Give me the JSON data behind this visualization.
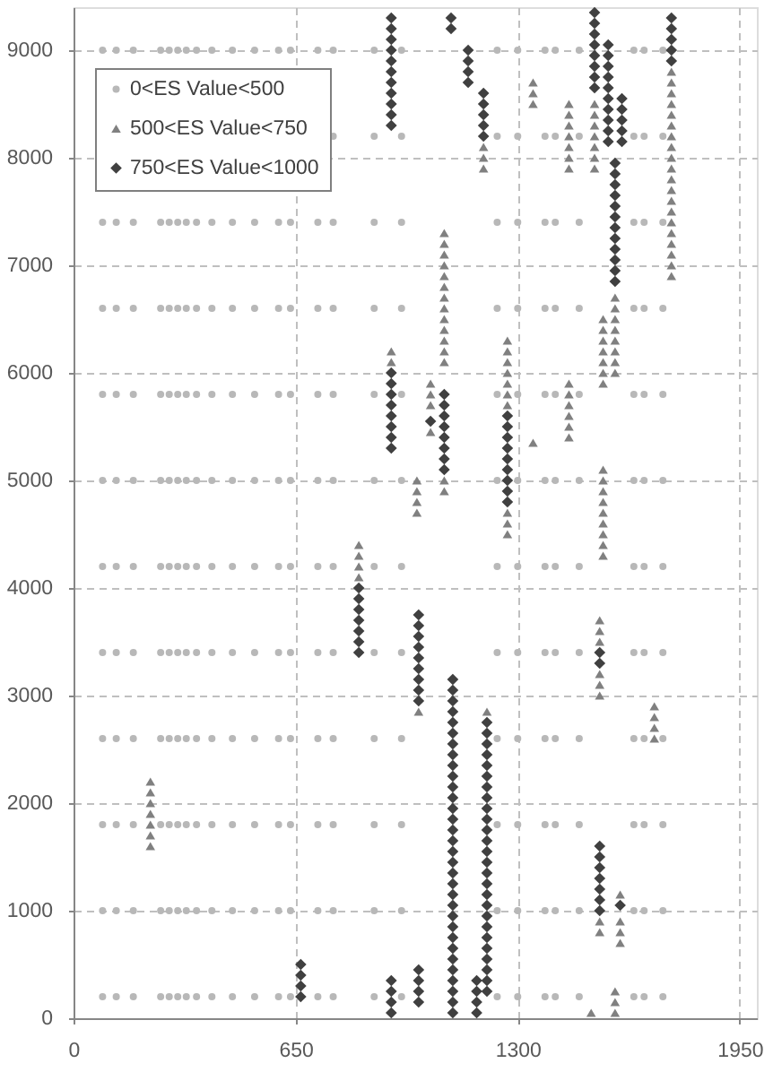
{
  "chart_data": {
    "type": "scatter",
    "xlim": [
      0,
      2000
    ],
    "xticks": [
      0,
      650,
      1300,
      1950
    ],
    "ylim": [
      0,
      9400
    ],
    "yticks": [
      0,
      1000,
      2000,
      3000,
      4000,
      5000,
      6000,
      7000,
      8000,
      9000
    ],
    "grid": true,
    "legend": "top left",
    "series": [
      {
        "name": "0<ES Value<500",
        "color": "#b8b8b8",
        "marker": "circle",
        "x": [
          85,
          85,
          85,
          85,
          85,
          85,
          85,
          85,
          85,
          85,
          85,
          125,
          125,
          125,
          125,
          125,
          125,
          125,
          125,
          125,
          125,
          125,
          175,
          175,
          175,
          175,
          175,
          175,
          175,
          175,
          175,
          175,
          175,
          255,
          255,
          255,
          255,
          255,
          255,
          255,
          255,
          255,
          255,
          255,
          280,
          280,
          280,
          280,
          280,
          280,
          280,
          280,
          280,
          280,
          280,
          305,
          305,
          305,
          305,
          305,
          305,
          305,
          305,
          305,
          305,
          305,
          330,
          330,
          330,
          330,
          330,
          330,
          330,
          330,
          330,
          330,
          330,
          360,
          360,
          360,
          360,
          360,
          360,
          360,
          360,
          360,
          360,
          360,
          405,
          405,
          405,
          405,
          405,
          405,
          405,
          405,
          405,
          405,
          405,
          465,
          465,
          465,
          465,
          465,
          465,
          465,
          465,
          465,
          465,
          465,
          530,
          530,
          530,
          530,
          530,
          530,
          530,
          530,
          530,
          530,
          530,
          600,
          600,
          600,
          600,
          600,
          600,
          600,
          600,
          600,
          600,
          600,
          635,
          635,
          635,
          635,
          635,
          635,
          635,
          635,
          635,
          635,
          635,
          715,
          715,
          715,
          715,
          715,
          715,
          715,
          715,
          715,
          715,
          715,
          760,
          760,
          760,
          760,
          760,
          760,
          760,
          760,
          760,
          760,
          760,
          760,
          880,
          880,
          880,
          880,
          880,
          880,
          880,
          880,
          880,
          880,
          880,
          880,
          960,
          960,
          960,
          960,
          960,
          960,
          960,
          960,
          960,
          960,
          960,
          960,
          1240,
          1240,
          1240,
          1240,
          1240,
          1240,
          1240,
          1240,
          1240,
          1240,
          1240,
          1240,
          1300,
          1300,
          1300,
          1300,
          1300,
          1300,
          1300,
          1300,
          1300,
          1300,
          1300,
          1300,
          1380,
          1380,
          1380,
          1380,
          1380,
          1380,
          1380,
          1380,
          1380,
          1380,
          1380,
          1380,
          1410,
          1410,
          1410,
          1410,
          1410,
          1410,
          1410,
          1410,
          1410,
          1410,
          1410,
          1410,
          1480,
          1480,
          1480,
          1480,
          1480,
          1480,
          1480,
          1480,
          1480,
          1480,
          1480,
          1480,
          1640,
          1640,
          1640,
          1640,
          1640,
          1640,
          1640,
          1640,
          1640,
          1640,
          1640,
          1640,
          1670,
          1670,
          1670,
          1670,
          1670,
          1670,
          1670,
          1670,
          1670,
          1670,
          1670,
          1670,
          1725,
          1725,
          1725,
          1725,
          1725,
          1725,
          1725,
          1725,
          1725,
          1725,
          1725,
          1725
        ],
        "values": [
          200,
          1000,
          1800,
          2600,
          3400,
          4200,
          5000,
          5800,
          6600,
          7400,
          9000,
          200,
          1000,
          1800,
          2600,
          3400,
          4200,
          5000,
          5800,
          6600,
          7400,
          9000,
          200,
          1000,
          1800,
          2600,
          3400,
          4200,
          5000,
          5800,
          6600,
          7400,
          9000,
          200,
          1000,
          1800,
          2600,
          3400,
          4200,
          5000,
          5800,
          6600,
          7400,
          9000,
          200,
          1000,
          1800,
          2600,
          3400,
          4200,
          5000,
          5800,
          6600,
          7400,
          9000,
          200,
          1000,
          1800,
          2600,
          3400,
          4200,
          5000,
          5800,
          6600,
          7400,
          9000,
          200,
          1000,
          1800,
          2600,
          3400,
          4200,
          5000,
          5800,
          6600,
          7400,
          9000,
          200,
          1000,
          1800,
          2600,
          3400,
          4200,
          5000,
          5800,
          6600,
          7400,
          9000,
          200,
          1000,
          1800,
          2600,
          3400,
          4200,
          5000,
          5800,
          6600,
          7400,
          9000,
          200,
          1000,
          1800,
          2600,
          3400,
          4200,
          5000,
          5800,
          6600,
          7400,
          9000,
          200,
          1000,
          1800,
          2600,
          3400,
          4200,
          5000,
          5800,
          6600,
          7400,
          9000,
          200,
          1000,
          1800,
          2600,
          3400,
          4200,
          5000,
          5800,
          6600,
          7400,
          9000,
          200,
          1000,
          1800,
          2600,
          3400,
          4200,
          5000,
          5800,
          6600,
          7400,
          9000,
          200,
          1000,
          1800,
          2600,
          3400,
          4200,
          5000,
          5800,
          6600,
          7400,
          9000,
          200,
          1000,
          1800,
          2600,
          3400,
          4200,
          5000,
          5800,
          6600,
          7400,
          8200,
          9000,
          200,
          1000,
          1800,
          2600,
          3400,
          4200,
          5000,
          5800,
          6600,
          7400,
          8200,
          9000,
          200,
          1000,
          1800,
          2600,
          3400,
          4200,
          5000,
          5800,
          6600,
          7400,
          8200,
          9000,
          200,
          1000,
          1800,
          2600,
          3400,
          4200,
          5000,
          5800,
          6600,
          7400,
          8200,
          9000,
          200,
          1000,
          1800,
          2600,
          3400,
          4200,
          5000,
          5800,
          6600,
          7400,
          8200,
          9000,
          200,
          1000,
          1800,
          2600,
          3400,
          4200,
          5000,
          5800,
          6600,
          7400,
          8200,
          9000,
          200,
          1000,
          1800,
          2600,
          3400,
          4200,
          5000,
          5800,
          6600,
          7400,
          8200,
          9000,
          200,
          1000,
          1800,
          2600,
          3400,
          4200,
          5000,
          5800,
          6600,
          7400,
          8200,
          9000,
          200,
          1000,
          1800,
          2600,
          3400,
          4200,
          5000,
          5800,
          6600,
          7400,
          8200,
          9000,
          200,
          1000,
          1800,
          2600,
          3400,
          4200,
          5000,
          5800,
          6600,
          7400,
          8200,
          9000,
          200,
          1000,
          1800,
          2600,
          3400,
          4200,
          5000,
          5800,
          6600,
          7400,
          8200,
          9000
        ]
      },
      {
        "name": "500<ES Value<750",
        "color": "#808080",
        "marker": "triangle",
        "x": [
          225,
          225,
          225,
          225,
          225,
          225,
          225,
          835,
          835,
          835,
          835,
          930,
          930,
          1085,
          1085,
          1085,
          1085,
          1085,
          1085,
          1085,
          1085,
          1085,
          1085,
          1085,
          1085,
          1085,
          1085,
          1085,
          1045,
          1045,
          1045,
          1045,
          1005,
          1005,
          1005,
          1005,
          1200,
          1200,
          1200,
          1270,
          1270,
          1270,
          1270,
          1270,
          1270,
          1270,
          1270,
          1270,
          1270,
          1345,
          1345,
          1345,
          1345,
          1450,
          1450,
          1450,
          1450,
          1450,
          1450,
          1450,
          1450,
          1450,
          1450,
          1450,
          1450,
          1450,
          1525,
          1525,
          1525,
          1525,
          1525,
          1525,
          1525,
          1585,
          1585,
          1585,
          1585,
          1585,
          1585,
          1585,
          1585,
          1550,
          1550,
          1550,
          1550,
          1550,
          1550,
          1550,
          1550,
          1550,
          1550,
          1550,
          1550,
          1550,
          1550,
          1550,
          1550,
          1540,
          1540,
          1540,
          1540,
          1540,
          1540,
          1540,
          1540,
          1600,
          1600,
          1600,
          1600,
          1585,
          1585,
          1585,
          1515,
          1700,
          1700,
          1700,
          1700,
          1750,
          1750,
          1750,
          1750,
          1750,
          1750,
          1750,
          1750,
          1750,
          1750,
          1750,
          1750,
          1750,
          1750,
          1750,
          1750,
          1750,
          1750,
          1750,
          1750,
          1010,
          1210
        ],
        "values": [
          1600,
          1700,
          1800,
          1900,
          2000,
          2100,
          2200,
          4100,
          4200,
          4300,
          4400,
          6100,
          6200,
          4900,
          5000,
          6100,
          6200,
          6300,
          6400,
          6500,
          6600,
          6700,
          6800,
          6900,
          7000,
          7100,
          7200,
          7300,
          5450,
          5700,
          5800,
          5900,
          4700,
          4800,
          4900,
          5000,
          7900,
          8000,
          8100,
          4500,
          4600,
          4700,
          5700,
          5800,
          5900,
          6000,
          6100,
          6200,
          6300,
          5350,
          8500,
          8600,
          8700,
          5400,
          5500,
          5600,
          5700,
          5800,
          5900,
          7900,
          8000,
          8100,
          8200,
          8300,
          8400,
          8500,
          7900,
          8000,
          8100,
          8200,
          8300,
          8400,
          8500,
          6000,
          6100,
          6200,
          6300,
          6400,
          6500,
          6600,
          6700,
          4300,
          4400,
          4500,
          4600,
          4700,
          4800,
          4900,
          5000,
          5100,
          5900,
          6000,
          6100,
          6200,
          6300,
          6400,
          6500,
          800,
          900,
          3000,
          3100,
          3200,
          3500,
          3600,
          3700,
          700,
          800,
          900,
          1150,
          50,
          150,
          250,
          50,
          2600,
          2700,
          2800,
          2900,
          6900,
          7000,
          7100,
          7200,
          7300,
          7400,
          7500,
          7600,
          7700,
          7800,
          7900,
          8000,
          8100,
          8200,
          8300,
          8400,
          8500,
          8600,
          8700,
          8800,
          2850,
          2850
        ]
      },
      {
        "name": "750<ES Value<1000",
        "color": "#404040",
        "marker": "diamond",
        "x": [
          665,
          665,
          665,
          665,
          835,
          835,
          835,
          835,
          835,
          835,
          835,
          930,
          930,
          930,
          930,
          930,
          930,
          930,
          930,
          930,
          930,
          930,
          930,
          930,
          930,
          930,
          930,
          930,
          930,
          930,
          930,
          930,
          930,
          930,
          1105,
          1105,
          1155,
          1155,
          1155,
          1155,
          1200,
          1200,
          1200,
          1200,
          1200,
          1085,
          1085,
          1085,
          1085,
          1085,
          1085,
          1085,
          1085,
          1045,
          1270,
          1270,
          1270,
          1270,
          1270,
          1270,
          1270,
          1270,
          1270,
          1525,
          1525,
          1525,
          1525,
          1525,
          1525,
          1525,
          1525,
          1565,
          1565,
          1565,
          1565,
          1565,
          1565,
          1565,
          1565,
          1565,
          1565,
          1605,
          1605,
          1605,
          1605,
          1605,
          1585,
          1585,
          1585,
          1585,
          1585,
          1585,
          1585,
          1585,
          1585,
          1585,
          1585,
          1585,
          1540,
          1540,
          1540,
          1540,
          1540,
          1540,
          1540,
          1540,
          1540,
          1600,
          1750,
          1750,
          1750,
          1750,
          1750,
          1010,
          1010,
          1010,
          1010,
          1010,
          1010,
          1010,
          1010,
          1010,
          1010,
          1010,
          1010,
          1010,
          1110,
          1110,
          1110,
          1110,
          1110,
          1110,
          1110,
          1110,
          1110,
          1110,
          1110,
          1110,
          1110,
          1110,
          1110,
          1110,
          1110,
          1110,
          1110,
          1110,
          1110,
          1110,
          1110,
          1110,
          1110,
          1110,
          1110,
          1110,
          1110,
          1110,
          1110,
          1110,
          1180,
          1180,
          1180,
          1180,
          1210,
          1210,
          1210,
          1210,
          1210,
          1210,
          1210,
          1210,
          1210,
          1210,
          1210,
          1210,
          1210,
          1210,
          1210,
          1210,
          1210,
          1210,
          1210,
          1210,
          1210,
          1210,
          1210,
          1210,
          1210,
          1210
        ],
        "values": [
          200,
          300,
          400,
          500,
          3400,
          3500,
          3600,
          3700,
          3800,
          3900,
          4000,
          50,
          150,
          250,
          350,
          5300,
          5400,
          5500,
          5600,
          5700,
          5800,
          5900,
          6000,
          8300,
          8400,
          8500,
          8600,
          8700,
          8800,
          8900,
          9000,
          9100,
          9200,
          9300,
          9200,
          9300,
          8700,
          8800,
          8900,
          9000,
          8200,
          8300,
          8400,
          8500,
          8600,
          5100,
          5200,
          5300,
          5400,
          5500,
          5600,
          5700,
          5800,
          5550,
          4800,
          4900,
          5000,
          5100,
          5200,
          5300,
          5400,
          5500,
          5600,
          8650,
          8750,
          8850,
          8950,
          9050,
          9150,
          9250,
          9350,
          8150,
          8250,
          8350,
          8450,
          8550,
          8650,
          8750,
          8850,
          8950,
          9050,
          8150,
          8250,
          8350,
          8450,
          8550,
          6850,
          6950,
          7050,
          7150,
          7250,
          7350,
          7450,
          7550,
          7650,
          7750,
          7850,
          7950,
          1000,
          1100,
          1200,
          1300,
          1400,
          1500,
          1600,
          3300,
          3400,
          1050,
          8900,
          9000,
          9100,
          9200,
          9300,
          150,
          250,
          350,
          450,
          2950,
          3050,
          3150,
          3250,
          3350,
          3450,
          3550,
          3650,
          3750,
          50,
          150,
          250,
          350,
          450,
          550,
          650,
          750,
          850,
          950,
          1050,
          1150,
          1250,
          1350,
          1450,
          1550,
          1650,
          1750,
          1850,
          1950,
          2050,
          2150,
          2250,
          2350,
          2450,
          2550,
          2650,
          2750,
          2850,
          2950,
          3050,
          3150,
          50,
          150,
          250,
          350,
          250,
          350,
          450,
          550,
          650,
          750,
          850,
          950,
          1050,
          1150,
          1250,
          1350,
          1450,
          1550,
          1650,
          1750,
          1850,
          1950,
          2050,
          2150,
          2250,
          2350,
          2450,
          2550,
          2650,
          2750
        ]
      }
    ]
  }
}
